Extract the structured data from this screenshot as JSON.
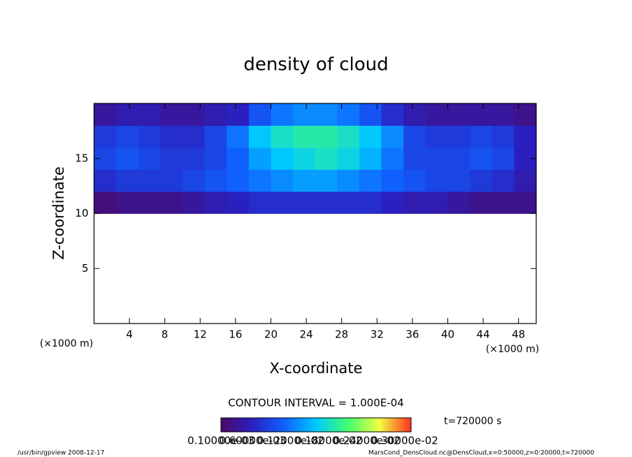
{
  "chart_data": {
    "type": "heatmap",
    "title": "density of cloud",
    "x_label": "X-coordinate",
    "y_label": "Z-coordinate",
    "x_unit": "(×1000 m)",
    "y_unit": "(×1000 m)",
    "xlim": [
      0,
      50
    ],
    "ylim": [
      0,
      20
    ],
    "xticks": [
      4,
      8,
      12,
      16,
      20,
      24,
      28,
      32,
      36,
      40,
      44,
      48
    ],
    "yticks": [
      5,
      10,
      15
    ],
    "x": [
      1.25,
      3.75,
      6.25,
      8.75,
      11.25,
      13.75,
      16.25,
      18.75,
      21.25,
      23.75,
      26.25,
      28.75,
      31.25,
      33.75,
      36.25,
      38.75,
      41.25,
      43.75,
      46.25,
      48.75
    ],
    "y": [
      11,
      13,
      15,
      17,
      19
    ],
    "values": [
      [
        0.0002,
        0.0003,
        0.0003,
        0.0003,
        0.0004,
        0.0005,
        0.0006,
        0.0007,
        0.0007,
        0.0007,
        0.0007,
        0.0007,
        0.0007,
        0.0006,
        0.0005,
        0.0005,
        0.0004,
        0.0003,
        0.0003,
        0.0003
      ],
      [
        0.0007,
        0.0008,
        0.0008,
        0.0008,
        0.0009,
        0.001,
        0.0011,
        0.0012,
        0.0013,
        0.0014,
        0.0014,
        0.0013,
        0.0012,
        0.0011,
        0.001,
        0.0009,
        0.0009,
        0.0008,
        0.0007,
        0.0005
      ],
      [
        0.0009,
        0.001,
        0.0009,
        0.0008,
        0.0008,
        0.0009,
        0.0011,
        0.0014,
        0.0016,
        0.0017,
        0.0018,
        0.0017,
        0.0015,
        0.0012,
        0.0009,
        0.0009,
        0.0009,
        0.001,
        0.0009,
        0.0006
      ],
      [
        0.0008,
        0.0009,
        0.0008,
        0.0007,
        0.0007,
        0.0009,
        0.0012,
        0.0016,
        0.0018,
        0.0019,
        0.0019,
        0.0018,
        0.0016,
        0.0013,
        0.0009,
        0.0008,
        0.0008,
        0.0009,
        0.0008,
        0.0006
      ],
      [
        0.0004,
        0.0005,
        0.0005,
        0.0004,
        0.0004,
        0.0005,
        0.0006,
        0.001,
        0.0012,
        0.0013,
        0.0013,
        0.0012,
        0.001,
        0.0007,
        0.0005,
        0.0004,
        0.0004,
        0.0004,
        0.0004,
        0.0003
      ]
    ],
    "clim": [
      0.0001,
      0.0031
    ],
    "colormap": [
      "#4a0a6a",
      "#2a20c0",
      "#1060ff",
      "#00c8ff",
      "#40ff70",
      "#f0ff40",
      "#ff3020"
    ],
    "colorbar_ticks": [
      {
        "value": 0.0001,
        "label": "0.10000e-03"
      },
      {
        "value": 0.0006,
        "label": "0.60000e-03"
      },
      {
        "value": 0.0012,
        "label": "0.12000e-02"
      },
      {
        "value": 0.0018,
        "label": "0.18000e-02"
      },
      {
        "value": 0.0024,
        "label": "0.24000e-02"
      },
      {
        "value": 0.003,
        "label": "0.30000e-02"
      }
    ],
    "contour_interval": "CONTOUR INTERVAL = 1.000E-04",
    "time_label": "t=720000 s",
    "footer_left": "/usr/bin/gpview   2008-12-17",
    "footer_right": "MarsCond_DensCloud.nc@DensCloud,x=0:50000,z=0:20000,t=720000"
  }
}
